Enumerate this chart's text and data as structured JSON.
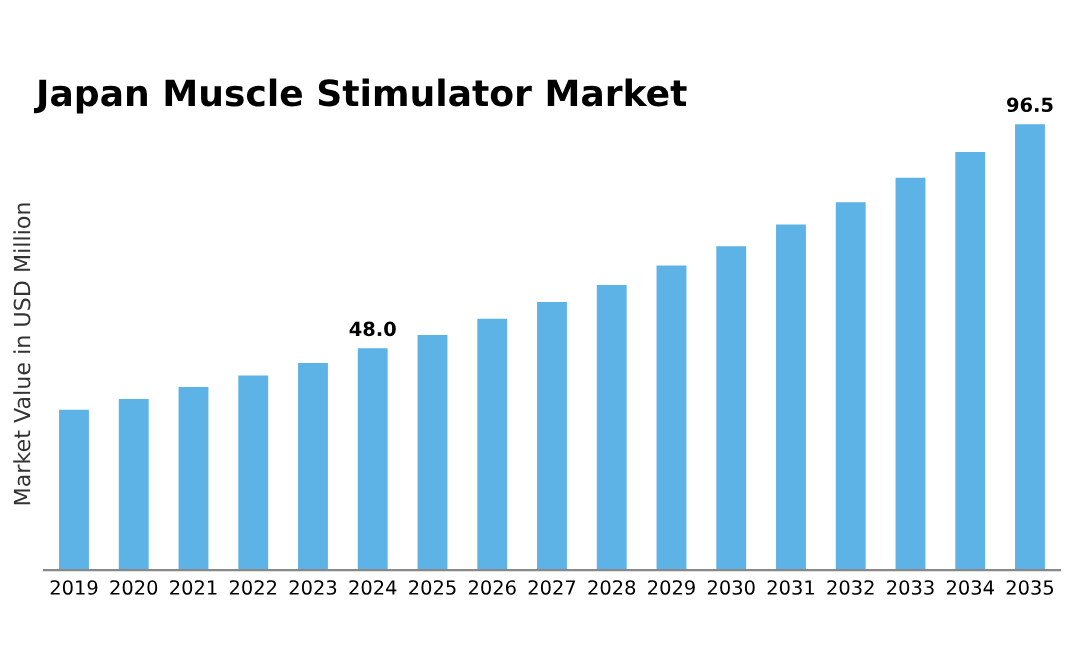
{
  "chart_data": {
    "type": "bar",
    "title": "Japan Muscle Stimulator Market",
    "ylabel": "Market Value in USD Million",
    "categories": [
      "2019",
      "2020",
      "2021",
      "2022",
      "2023",
      "2024",
      "2025",
      "2026",
      "2027",
      "2028",
      "2029",
      "2030",
      "2031",
      "2032",
      "2033",
      "2034",
      "2035"
    ],
    "values": [
      34.7,
      37.0,
      39.6,
      42.1,
      44.8,
      48.0,
      50.9,
      54.4,
      58.0,
      61.7,
      65.9,
      70.1,
      74.8,
      79.6,
      84.9,
      90.5,
      96.5
    ],
    "value_labels": [
      null,
      null,
      null,
      null,
      null,
      "48.0",
      null,
      null,
      null,
      null,
      null,
      null,
      null,
      null,
      null,
      null,
      "96.5"
    ],
    "color": "#5db3e6",
    "grid": false,
    "legend": false,
    "tick_labels": "x"
  }
}
